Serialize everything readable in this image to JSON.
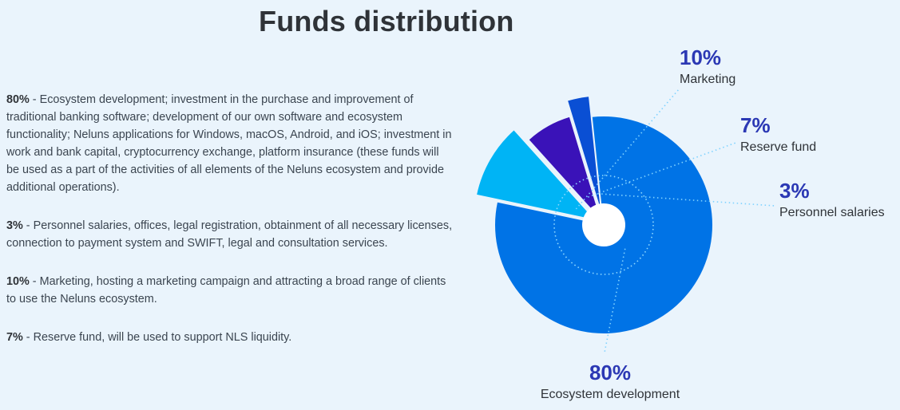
{
  "header": {
    "title": "Funds distribution"
  },
  "descriptions": [
    {
      "pct": "80%",
      "text": " - Ecosystem development; investment in the purchase and improvement of traditional banking software; development of our own software and ecosystem functionality; Neluns applications for Windows, macOS, Android, and iOS; investment in work and bank capital, cryptocurrency exchange, platform insurance (these funds will be used as a part of the activities of all elements of the Neluns ecosystem and provide additional operations)."
    },
    {
      "pct": "3%",
      "text": " - Personnel salaries, offices, legal registration, obtainment of all necessary licenses, connection to payment system and SWIFT, legal and consultation services."
    },
    {
      "pct": "10%",
      "text": " - Marketing, hosting a marketing campaign and attracting a broad range of clients to use the Neluns ecosystem."
    },
    {
      "pct": "7%",
      "text": " - Reserve fund, will be used to support NLS liquidity."
    }
  ],
  "chart_data": {
    "type": "pie",
    "categories": [
      "Ecosystem development",
      "Marketing",
      "Reserve fund",
      "Personnel salaries"
    ],
    "values": [
      80,
      10,
      7,
      3
    ],
    "labels": [
      "80%",
      "10%",
      "7%",
      "3%"
    ],
    "colors": [
      "#0073e6",
      "#00b4f5",
      "#3a12b8",
      "#0a4fd4"
    ],
    "label_color": "#2b38b4"
  }
}
